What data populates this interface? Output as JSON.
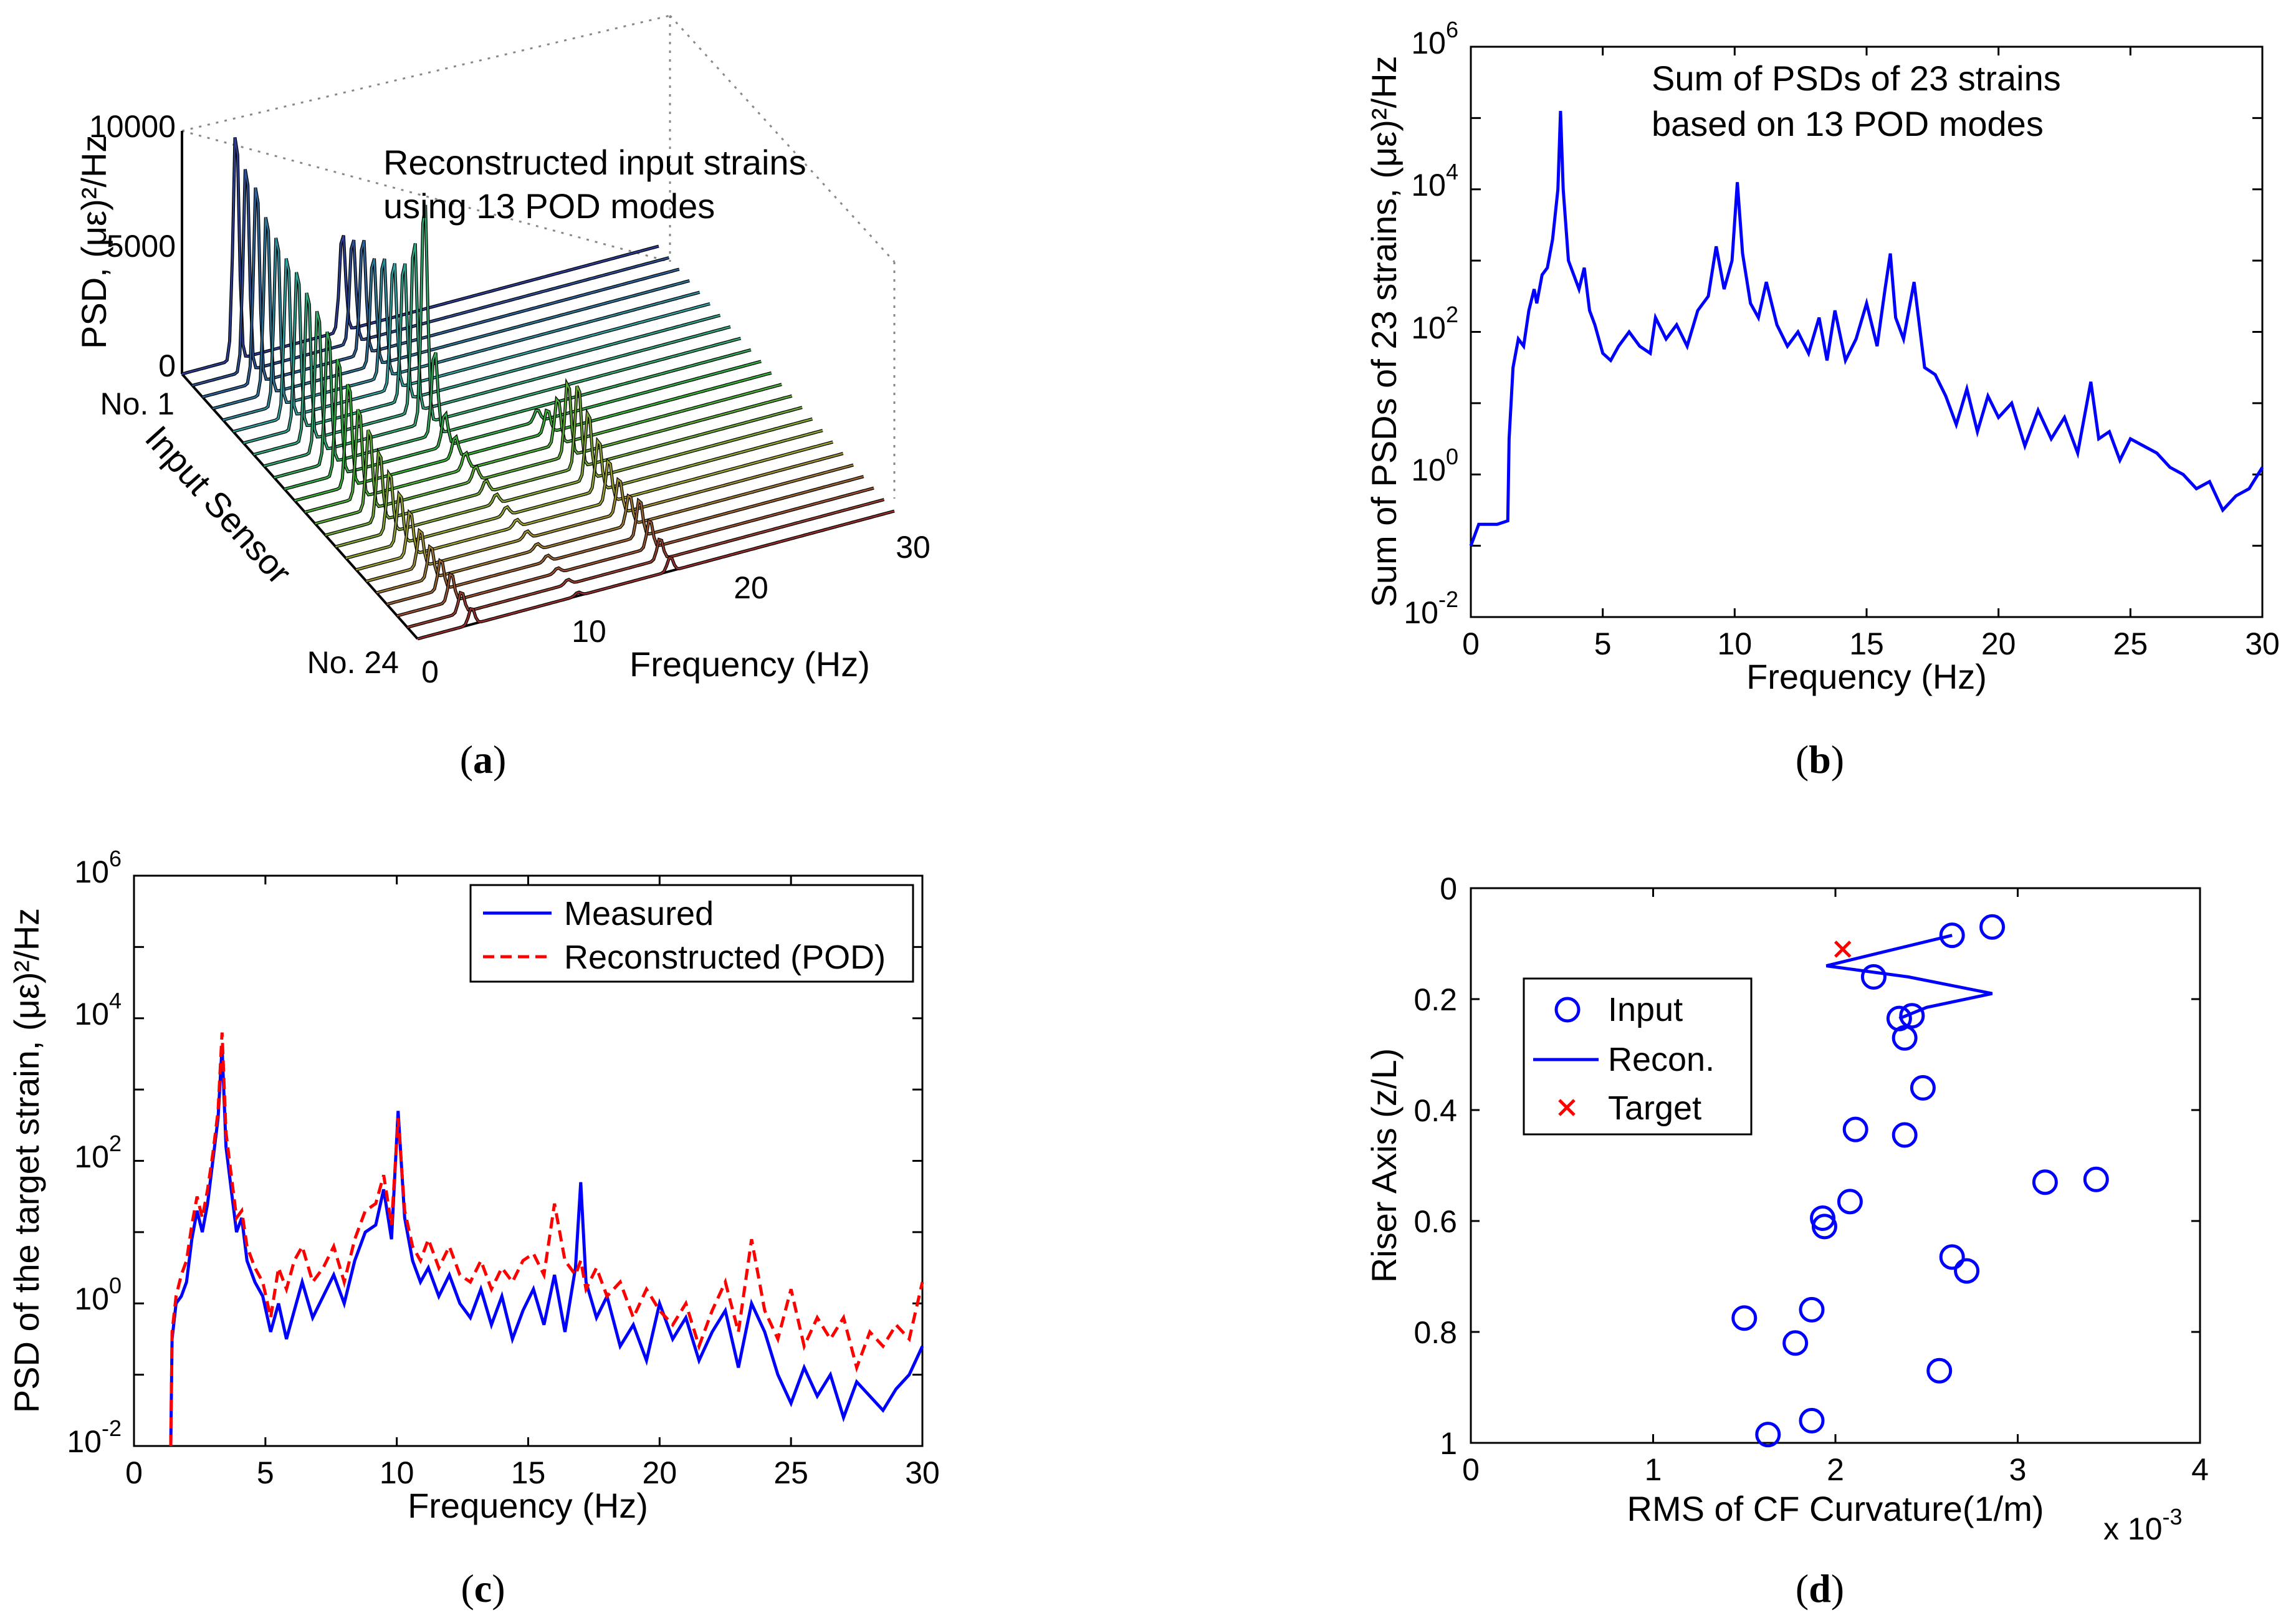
{
  "chart_data": [
    {
      "id": "a",
      "type": "waterfall",
      "caption_open": "(",
      "caption_letter": "a",
      "caption_close": ")",
      "annotation": [
        "Reconstructed input strains",
        "using 13 POD modes"
      ],
      "zlabel": "PSD, (με)²/Hz",
      "zticks": [
        "0",
        "5000",
        "10000"
      ],
      "zlim": [
        0,
        10000
      ],
      "ylabel": "Input Sensor",
      "yticks": [
        "No. 1",
        "No. 24"
      ],
      "xlabel": "Frequency (Hz)",
      "xticks": [
        "0",
        "10",
        "20",
        "30"
      ],
      "xlim": [
        0,
        30
      ],
      "n_sensors": 24,
      "peak_freqs": [
        3.4,
        10.1,
        15.9
      ],
      "peak_heights": [
        [
          9800,
          4200,
          0
        ],
        [
          8900,
          4500,
          0
        ],
        [
          8600,
          5000,
          0
        ],
        [
          7800,
          4700,
          0
        ],
        [
          7400,
          5200,
          0
        ],
        [
          7000,
          5500,
          0
        ],
        [
          6900,
          6000,
          0
        ],
        [
          6500,
          7400,
          0
        ],
        [
          6200,
          9600,
          0
        ],
        [
          5800,
          3600,
          0
        ],
        [
          5100,
          1400,
          500
        ],
        [
          4500,
          900,
          1000
        ],
        [
          3900,
          700,
          2000
        ],
        [
          3500,
          600,
          3200
        ],
        [
          3000,
          500,
          3600
        ],
        [
          2600,
          400,
          2900
        ],
        [
          2200,
          350,
          2200
        ],
        [
          1900,
          300,
          1800
        ],
        [
          1600,
          300,
          1500
        ],
        [
          1400,
          250,
          1300
        ],
        [
          1300,
          250,
          1600
        ],
        [
          1200,
          200,
          1200
        ],
        [
          900,
          200,
          900
        ],
        [
          700,
          150,
          600
        ]
      ]
    },
    {
      "id": "b",
      "type": "line",
      "caption_open": "(",
      "caption_letter": "b",
      "caption_close": ")",
      "annotation": [
        "Sum of PSDs of 23 strains",
        "based on 13 POD modes"
      ],
      "xlabel": "Frequency (Hz)",
      "ylabel": "Sum of PSDs of 23 strains, (με)²/Hz",
      "xlim": [
        0,
        30
      ],
      "ylim_log10": [
        -2,
        6
      ],
      "xticks": [
        "0",
        "5",
        "10",
        "15",
        "20",
        "25",
        "30"
      ],
      "yticks": [
        {
          "base": "10",
          "exp": "-2"
        },
        {
          "base": "10",
          "exp": "0"
        },
        {
          "base": "10",
          "exp": "2"
        },
        {
          "base": "10",
          "exp": "4"
        },
        {
          "base": "10",
          "exp": "6"
        }
      ],
      "series": [
        {
          "name": "Sum of PSDs",
          "color": "#0000ff",
          "x": [
            0,
            0.3,
            1.0,
            1.4,
            1.45,
            1.6,
            1.8,
            2.0,
            2.2,
            2.4,
            2.5,
            2.7,
            2.9,
            3.1,
            3.3,
            3.4,
            3.5,
            3.7,
            3.9,
            4.1,
            4.3,
            4.5,
            4.7,
            5.0,
            5.3,
            5.6,
            6.0,
            6.4,
            6.8,
            7.0,
            7.4,
            7.8,
            8.2,
            8.6,
            9.0,
            9.3,
            9.6,
            9.9,
            10.1,
            10.3,
            10.6,
            10.9,
            11.2,
            11.6,
            12.0,
            12.4,
            12.8,
            13.2,
            13.5,
            13.8,
            14.2,
            14.6,
            15.0,
            15.4,
            15.7,
            15.9,
            16.1,
            16.4,
            16.8,
            17.2,
            17.6,
            18.0,
            18.4,
            18.8,
            19.2,
            19.6,
            20.0,
            20.5,
            21.0,
            21.5,
            22.0,
            22.5,
            23.0,
            23.5,
            23.8,
            24.2,
            24.6,
            25.0,
            25.5,
            26.0,
            26.5,
            27.0,
            27.5,
            28.0,
            28.5,
            29.0,
            29.5,
            30.0
          ],
          "y_log10": [
            -1.0,
            -0.7,
            -0.7,
            -0.65,
            0.5,
            1.5,
            1.9,
            1.8,
            2.3,
            2.6,
            2.4,
            2.8,
            2.9,
            3.3,
            4.0,
            5.1,
            4.0,
            3.0,
            2.8,
            2.6,
            2.9,
            2.3,
            2.1,
            1.7,
            1.6,
            1.8,
            2.0,
            1.8,
            1.7,
            2.2,
            1.9,
            2.1,
            1.8,
            2.3,
            2.5,
            3.2,
            2.6,
            3.0,
            4.1,
            3.1,
            2.4,
            2.2,
            2.7,
            2.1,
            1.8,
            2.0,
            1.7,
            2.2,
            1.6,
            2.3,
            1.6,
            1.9,
            2.4,
            1.8,
            2.6,
            3.1,
            2.2,
            1.9,
            2.7,
            1.5,
            1.4,
            1.1,
            0.7,
            1.2,
            0.6,
            1.1,
            0.8,
            1.0,
            0.4,
            0.9,
            0.5,
            0.8,
            0.3,
            1.3,
            0.5,
            0.6,
            0.2,
            0.5,
            0.4,
            0.3,
            0.1,
            0.0,
            -0.2,
            -0.1,
            -0.5,
            -0.3,
            -0.2,
            0.1
          ]
        }
      ]
    },
    {
      "id": "c",
      "type": "line",
      "caption_open": "(",
      "caption_letter": "c",
      "caption_close": ")",
      "xlabel": "Frequency (Hz)",
      "ylabel": "PSD of the target strain, (με)²/Hz",
      "xlim": [
        0,
        30
      ],
      "ylim_log10": [
        -2,
        6
      ],
      "xticks": [
        "0",
        "5",
        "10",
        "15",
        "20",
        "25",
        "30"
      ],
      "yticks": [
        {
          "base": "10",
          "exp": "-2"
        },
        {
          "base": "10",
          "exp": "0"
        },
        {
          "base": "10",
          "exp": "2"
        },
        {
          "base": "10",
          "exp": "4"
        },
        {
          "base": "10",
          "exp": "6"
        }
      ],
      "legend": {
        "position": "top-right"
      },
      "series": [
        {
          "name": "Measured",
          "color": "#0000ff",
          "style": "solid",
          "x": [
            1.4,
            1.45,
            1.6,
            1.8,
            2.0,
            2.2,
            2.4,
            2.6,
            2.8,
            3.0,
            3.2,
            3.35,
            3.5,
            3.7,
            3.9,
            4.1,
            4.3,
            4.6,
            4.9,
            5.2,
            5.5,
            5.8,
            6.1,
            6.4,
            6.8,
            7.2,
            7.6,
            8.0,
            8.4,
            8.8,
            9.2,
            9.5,
            9.8,
            10.05,
            10.3,
            10.6,
            10.9,
            11.2,
            11.6,
            12.0,
            12.4,
            12.8,
            13.2,
            13.6,
            14.0,
            14.4,
            14.8,
            15.2,
            15.6,
            16.0,
            16.4,
            16.8,
            17.0,
            17.2,
            17.6,
            18.0,
            18.5,
            19.0,
            19.5,
            20.0,
            20.5,
            21.0,
            21.5,
            22.0,
            22.5,
            23.0,
            23.5,
            24.0,
            24.5,
            25.0,
            25.5,
            26.0,
            26.5,
            27.0,
            27.5,
            28.0,
            28.5,
            29.0,
            29.5,
            30.0
          ],
          "y_log10": [
            -2.0,
            -0.5,
            0.0,
            0.1,
            0.3,
            0.9,
            1.3,
            1.0,
            1.4,
            2.0,
            2.6,
            3.6,
            2.2,
            1.6,
            1.0,
            1.2,
            0.6,
            0.3,
            0.1,
            -0.4,
            0.0,
            -0.5,
            -0.1,
            0.3,
            -0.2,
            0.1,
            0.4,
            0.0,
            0.6,
            1.0,
            1.1,
            1.6,
            0.9,
            2.7,
            1.2,
            0.6,
            0.3,
            0.5,
            0.1,
            0.4,
            0.0,
            -0.2,
            0.2,
            -0.3,
            0.1,
            -0.5,
            -0.1,
            0.2,
            -0.3,
            0.4,
            -0.4,
            0.5,
            1.7,
            0.3,
            -0.2,
            0.1,
            -0.6,
            -0.3,
            -0.8,
            0.0,
            -0.5,
            -0.2,
            -0.8,
            -0.4,
            -0.1,
            -0.9,
            0.0,
            -0.4,
            -1.0,
            -1.4,
            -0.9,
            -1.3,
            -1.0,
            -1.6,
            -1.1,
            -1.3,
            -1.5,
            -1.2,
            -1.0,
            -0.6
          ]
        },
        {
          "name": "Reconstructed (POD)",
          "color": "#ff0000",
          "style": "dashed",
          "x": [
            1.4,
            1.45,
            1.6,
            1.8,
            2.0,
            2.2,
            2.4,
            2.6,
            2.8,
            3.0,
            3.2,
            3.35,
            3.5,
            3.7,
            3.9,
            4.1,
            4.3,
            4.6,
            4.9,
            5.2,
            5.5,
            5.8,
            6.1,
            6.4,
            6.8,
            7.2,
            7.6,
            8.0,
            8.4,
            8.8,
            9.2,
            9.5,
            9.8,
            10.05,
            10.3,
            10.6,
            10.9,
            11.2,
            11.6,
            12.0,
            12.4,
            12.8,
            13.2,
            13.6,
            14.0,
            14.4,
            14.8,
            15.2,
            15.6,
            16.0,
            16.4,
            16.8,
            17.0,
            17.2,
            17.6,
            18.0,
            18.5,
            19.0,
            19.5,
            20.0,
            20.5,
            21.0,
            21.5,
            22.0,
            22.5,
            23.0,
            23.5,
            24.0,
            24.5,
            25.0,
            25.5,
            26.0,
            26.5,
            27.0,
            27.5,
            28.0,
            28.5,
            29.0,
            29.5,
            30.0
          ],
          "y_log10": [
            -2.0,
            -0.4,
            0.1,
            0.4,
            0.6,
            1.1,
            1.5,
            1.2,
            1.6,
            2.1,
            2.7,
            3.8,
            2.4,
            1.8,
            1.2,
            1.3,
            0.8,
            0.5,
            0.3,
            -0.2,
            0.5,
            0.2,
            0.6,
            0.8,
            0.3,
            0.5,
            0.8,
            0.3,
            0.9,
            1.3,
            1.4,
            1.8,
            1.1,
            2.6,
            1.3,
            0.8,
            0.6,
            0.9,
            0.5,
            0.8,
            0.4,
            0.3,
            0.6,
            0.2,
            0.5,
            0.3,
            0.6,
            0.7,
            0.4,
            1.4,
            0.6,
            0.4,
            0.6,
            0.2,
            0.5,
            0.1,
            0.3,
            -0.2,
            0.2,
            -0.1,
            -0.3,
            0.0,
            -0.6,
            -0.1,
            0.3,
            -0.4,
            0.9,
            -0.1,
            -0.5,
            0.2,
            -0.6,
            -0.2,
            -0.5,
            -0.2,
            -0.9,
            -0.4,
            -0.6,
            -0.3,
            -0.5,
            0.3
          ]
        }
      ]
    },
    {
      "id": "d",
      "type": "scatter",
      "caption_open": "(",
      "caption_letter": "d",
      "caption_close": ")",
      "xlabel": "RMS of CF Curvature(1/m)",
      "x_multiplier": {
        "text": "x 10",
        "exp": "-3"
      },
      "ylabel": "Riser Axis (z/L)",
      "xlim": [
        0,
        4
      ],
      "ylim": [
        0,
        1
      ],
      "y_reversed": true,
      "xticks": [
        "0",
        "1",
        "2",
        "3",
        "4"
      ],
      "yticks": [
        "0",
        "0.2",
        "0.4",
        "0.6",
        "0.8",
        "1"
      ],
      "legend": {
        "position": "left",
        "entries": [
          "Input",
          "Recon.",
          "Target"
        ]
      },
      "input_points": [
        [
          2.64,
          0.085
        ],
        [
          2.86,
          0.07
        ],
        [
          2.21,
          0.16
        ],
        [
          2.35,
          0.235
        ],
        [
          2.42,
          0.23
        ],
        [
          2.38,
          0.27
        ],
        [
          2.48,
          0.36
        ],
        [
          2.11,
          0.435
        ],
        [
          2.38,
          0.445
        ],
        [
          3.15,
          0.53
        ],
        [
          3.43,
          0.525
        ],
        [
          2.08,
          0.565
        ],
        [
          1.93,
          0.595
        ],
        [
          1.94,
          0.61
        ],
        [
          2.64,
          0.665
        ],
        [
          2.72,
          0.69
        ],
        [
          1.5,
          0.775
        ],
        [
          1.87,
          0.76
        ],
        [
          1.78,
          0.82
        ],
        [
          2.57,
          0.87
        ],
        [
          1.87,
          0.96
        ],
        [
          1.63,
          0.985
        ]
      ],
      "recon_curve": [
        [
          2.64,
          0.085
        ],
        [
          2.2,
          0.12
        ],
        [
          1.95,
          0.14
        ],
        [
          2.4,
          0.16
        ],
        [
          2.86,
          0.19
        ],
        [
          2.5,
          0.215
        ],
        [
          2.35,
          0.235
        ]
      ],
      "target_point": [
        2.04,
        0.11
      ]
    }
  ]
}
